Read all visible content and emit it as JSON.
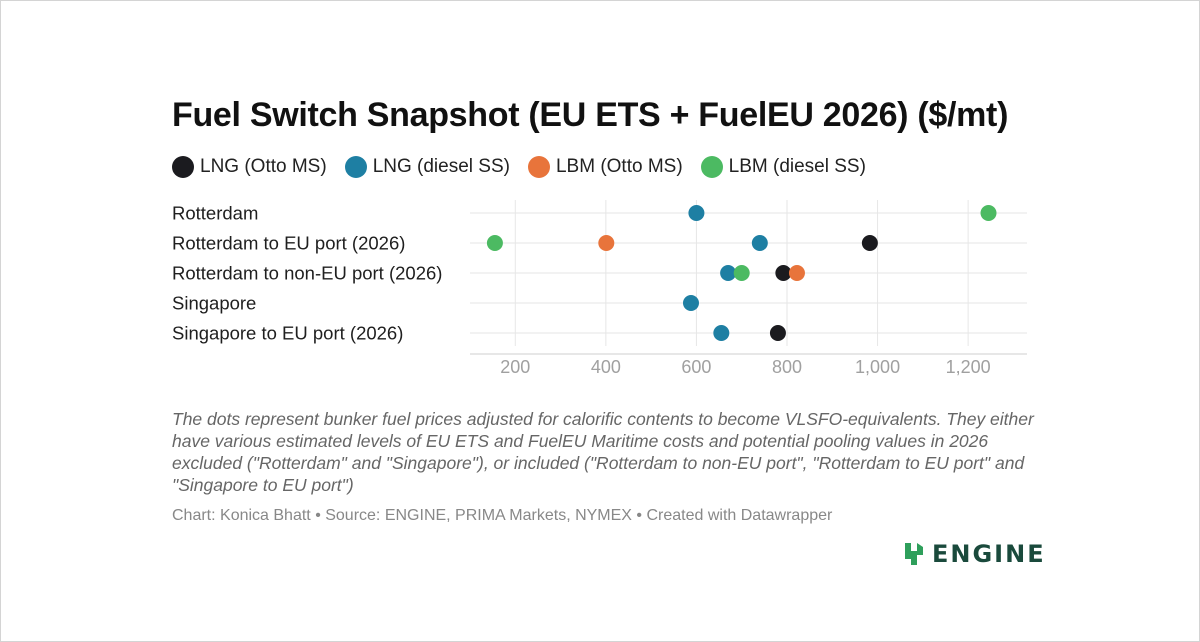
{
  "chart_data": {
    "type": "scatter",
    "title": "Fuel Switch Snapshot (EU ETS + FuelEU 2026) ($/mt)",
    "categories": [
      "Rotterdam",
      "Rotterdam to EU port (2026)",
      "Rotterdam to non-EU port (2026)",
      "Singapore",
      "Singapore to EU port (2026)"
    ],
    "series": [
      {
        "name": "LNG (Otto MS)",
        "color": "#1b1b1f",
        "values": [
          null,
          983,
          792,
          null,
          780
        ]
      },
      {
        "name": "LNG (diesel SS)",
        "color": "#1e7fa3",
        "values": [
          600,
          740,
          670,
          588,
          655
        ]
      },
      {
        "name": "LBM (Otto MS)",
        "color": "#e8743b",
        "values": [
          null,
          401,
          822,
          null,
          null
        ]
      },
      {
        "name": "LBM (diesel SS)",
        "color": "#4cba62",
        "values": [
          1245,
          155,
          700,
          null,
          null
        ]
      }
    ],
    "xlim": [
      100,
      1330
    ],
    "xticks": [
      200,
      400,
      600,
      800,
      1000,
      1200
    ],
    "xtick_labels": [
      "200",
      "400",
      "600",
      "800",
      "1,000",
      "1,200"
    ],
    "grid": true,
    "legend_position": "top-left",
    "description": "The dots represent bunker fuel prices adjusted for calorific contents to become VLSFO-equivalents. They either have various estimated levels of EU ETS and FuelEU Maritime costs and potential pooling values in 2026 excluded (\"Rotterdam\" and \"Singapore\"), or included (\"Rotterdam to non-EU port\", \"Rotterdam to EU port\" and \"Singapore to EU port\")",
    "footer": "Chart: Konica Bhatt • Source: ENGINE, PRIMA Markets, NYMEX • Created with Datawrapper"
  },
  "brand": {
    "logo_text": "ENGINE",
    "logo_icon": "engine-logo-icon",
    "color": "#1a4a3c"
  }
}
